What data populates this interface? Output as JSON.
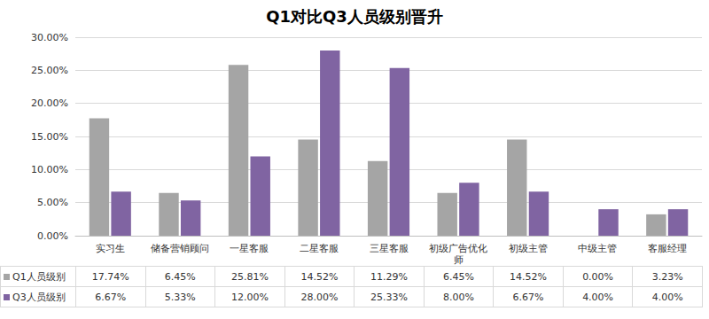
{
  "chart_data": {
    "type": "bar",
    "title": "Q1对比Q3人员级别晋升",
    "categories": [
      "实习生",
      "储备营销顾问",
      "一星客服",
      "二星客服",
      "三星客服",
      "初级广告优化师",
      "初级主管",
      "中级主管",
      "客服经理"
    ],
    "series": [
      {
        "name": "Q1人员级别",
        "color": "#a5a5a5",
        "values": [
          17.74,
          6.45,
          25.81,
          14.52,
          11.29,
          6.45,
          14.52,
          0.0,
          3.23
        ],
        "value_labels": [
          "17.74%",
          "6.45%",
          "25.81%",
          "14.52%",
          "11.29%",
          "6.45%",
          "14.52%",
          "0.00%",
          "3.23%"
        ]
      },
      {
        "name": "Q3人员级别",
        "color": "#8064a2",
        "values": [
          6.67,
          5.33,
          12.0,
          28.0,
          25.33,
          8.0,
          6.67,
          4.0,
          4.0
        ],
        "value_labels": [
          "6.67%",
          "5.33%",
          "12.00%",
          "28.00%",
          "25.33%",
          "8.00%",
          "6.67%",
          "4.00%",
          "4.00%"
        ]
      }
    ],
    "ylim": [
      0,
      30
    ],
    "yticks": [
      {
        "value": 0,
        "label": "0.00%"
      },
      {
        "value": 5,
        "label": "5.00%"
      },
      {
        "value": 10,
        "label": "10.00%"
      },
      {
        "value": 15,
        "label": "15.00%"
      },
      {
        "value": 20,
        "label": "20.00%"
      },
      {
        "value": 25,
        "label": "25.00%"
      },
      {
        "value": 30,
        "label": "30.00%"
      }
    ],
    "grid": true
  }
}
